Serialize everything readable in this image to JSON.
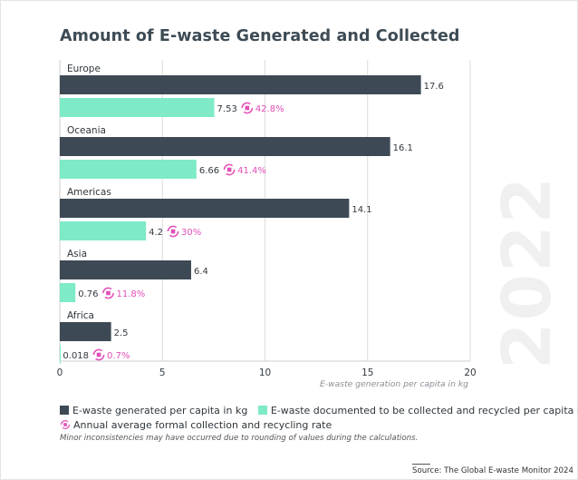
{
  "title": "Amount of E-waste Generated and Collected",
  "year_watermark": "2022",
  "colors": {
    "generated": "#3d4a55",
    "collected": "#7eeac8",
    "rate": "#e24fb8",
    "grid": "#dcdcdc"
  },
  "chart_data": {
    "type": "bar",
    "orientation": "horizontal",
    "title": "Amount of E-waste Generated and Collected",
    "xlabel": "E-waste generation per capita in kg",
    "xlim": [
      0,
      20
    ],
    "xticks": [
      "0",
      "5",
      "10",
      "15",
      "20"
    ],
    "categories": [
      "Europe",
      "Oceania",
      "Americas",
      "Asia",
      "Africa"
    ],
    "series": [
      {
        "name": "E-waste generated per capita in kg",
        "values": [
          17.6,
          16.1,
          14.1,
          6.4,
          2.5
        ],
        "labels": [
          "17.6",
          "16.1",
          "14.1",
          "6.4",
          "2.5"
        ]
      },
      {
        "name": "E-waste documented to be collected and recycled per capita in kg",
        "values": [
          7.53,
          6.66,
          4.2,
          0.76,
          0.018
        ],
        "labels": [
          "7.53",
          "6.66",
          "4.2",
          "0.76",
          "0.018"
        ]
      }
    ],
    "rates": [
      "42.8%",
      "41.4%",
      "30%",
      "11.8%",
      "0.7%"
    ],
    "rate_label": "Annual average formal collection and recycling rate"
  },
  "legend": {
    "generated": "E-waste generated per capita in kg",
    "collected": "E-waste documented to be collected and recycled per capita in kg",
    "rate": "Annual average formal collection and recycling rate"
  },
  "note": "Minor inconsistencies may have occurred due to rounding of values during the calculations.",
  "source": "Source: The Global E-waste Monitor 2024"
}
